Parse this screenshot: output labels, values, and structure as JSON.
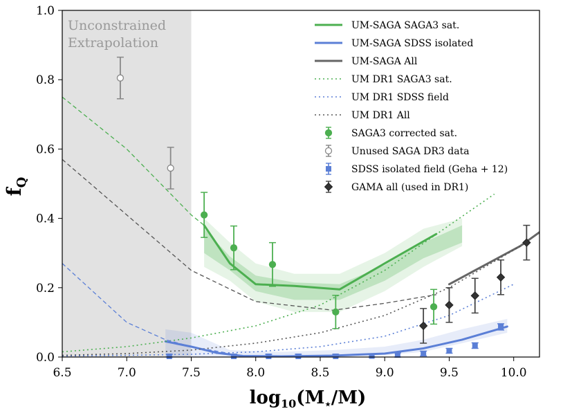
{
  "chart_data": {
    "type": "line",
    "xlabel": "log10(M⋆/M)",
    "xlabel_parts": {
      "prefix": "log",
      "sub": "10",
      "main": "(M",
      "star": "⋆",
      "suffix": "/M)"
    },
    "ylabel": "fQ",
    "ylabel_parts": {
      "main": "f",
      "sub": "Q"
    },
    "xlim": [
      6.5,
      10.2
    ],
    "ylim": [
      0.0,
      1.0
    ],
    "x_ticks": [
      "6.5",
      "7.0",
      "7.5",
      "8.0",
      "8.5",
      "9.0",
      "9.5",
      "10.0"
    ],
    "y_ticks": [
      "0.0",
      "0.2",
      "0.4",
      "0.6",
      "0.8",
      "1.0"
    ],
    "grid": false,
    "legend_position": "top-right",
    "shaded_region": {
      "x_range": [
        6.5,
        7.5
      ],
      "label_lines": [
        "Unconstrained",
        "Extrapolation"
      ],
      "color": "#e2e2e2"
    },
    "bands": [
      {
        "name": "UM-SAGA SAGA3 sat. outer band",
        "color": "#4caf50",
        "opacity": 0.14,
        "x": [
          7.6,
          7.8,
          8.0,
          8.3,
          8.65,
          9.0,
          9.3,
          9.6
        ],
        "upper": [
          0.4,
          0.33,
          0.27,
          0.24,
          0.24,
          0.3,
          0.37,
          0.4
        ],
        "lower": [
          0.26,
          0.22,
          0.16,
          0.13,
          0.13,
          0.19,
          0.26,
          0.32
        ]
      },
      {
        "name": "UM-SAGA SAGA3 sat. inner band",
        "color": "#4caf50",
        "opacity": 0.25,
        "x": [
          7.6,
          7.8,
          8.0,
          8.3,
          8.65,
          9.0,
          9.3,
          9.6
        ],
        "upper": [
          0.37,
          0.29,
          0.235,
          0.215,
          0.21,
          0.265,
          0.33,
          0.38
        ],
        "lower": [
          0.3,
          0.25,
          0.19,
          0.165,
          0.165,
          0.22,
          0.285,
          0.33
        ]
      },
      {
        "name": "UM-SAGA SDSS isolated band",
        "color": "#5b7fd6",
        "opacity": 0.15,
        "x": [
          7.3,
          7.5,
          7.8,
          8.2,
          8.6,
          9.0,
          9.3,
          9.6,
          9.95
        ],
        "upper": [
          0.08,
          0.07,
          0.02,
          0.015,
          0.02,
          0.03,
          0.05,
          0.08,
          0.11
        ],
        "lower": [
          0.0,
          0.0,
          0.0,
          0.0,
          0.0,
          0.005,
          0.015,
          0.04,
          0.07
        ]
      }
    ],
    "series": [
      {
        "name": "UM-SAGA SAGA3 sat.",
        "color": "#4caf50",
        "style": "solid",
        "width": 3,
        "x": [
          7.6,
          7.8,
          8.0,
          8.3,
          8.65,
          9.0,
          9.4
        ],
        "y": [
          0.38,
          0.27,
          0.21,
          0.205,
          0.195,
          0.27,
          0.355
        ]
      },
      {
        "name": "UM-SAGA SDSS isolated",
        "color": "#5b7fd6",
        "style": "solid",
        "width": 3,
        "x": [
          7.3,
          7.5,
          7.7,
          7.9,
          8.2,
          8.6,
          9.0,
          9.3,
          9.6,
          9.95
        ],
        "y": [
          0.045,
          0.03,
          0.012,
          0.003,
          0.002,
          0.004,
          0.01,
          0.025,
          0.05,
          0.088
        ]
      },
      {
        "name": "UM-SAGA All",
        "color": "#666666",
        "style": "solid",
        "width": 3,
        "x": [
          9.5,
          9.7,
          9.9,
          10.05,
          10.2
        ],
        "y": [
          0.21,
          0.25,
          0.29,
          0.32,
          0.36
        ]
      },
      {
        "name": "UM DR1 SAGA3 sat.",
        "color": "#4caf50",
        "style": "dotted",
        "width": 1.6,
        "x": [
          6.5,
          7.0,
          7.5,
          8.0,
          8.5,
          9.0,
          9.5,
          9.85
        ],
        "y": [
          0.015,
          0.03,
          0.055,
          0.09,
          0.15,
          0.25,
          0.38,
          0.47
        ]
      },
      {
        "name": "UM DR1 SDSS field",
        "color": "#5b7fd6",
        "style": "dotted",
        "width": 1.6,
        "x": [
          6.5,
          7.0,
          7.5,
          8.0,
          8.5,
          9.0,
          9.5,
          10.0
        ],
        "y": [
          0.003,
          0.005,
          0.008,
          0.015,
          0.03,
          0.06,
          0.12,
          0.21
        ]
      },
      {
        "name": "UM DR1 All",
        "color": "#555555",
        "style": "dotted",
        "width": 1.6,
        "x": [
          6.5,
          7.0,
          7.5,
          8.0,
          8.5,
          9.0,
          9.5,
          10.1
        ],
        "y": [
          0.005,
          0.01,
          0.02,
          0.04,
          0.07,
          0.12,
          0.2,
          0.33
        ]
      },
      {
        "name": "UM DR1 SAGA3 sat. (extrapolated)",
        "color": "#4caf50",
        "style": "dashed",
        "width": 1.3,
        "x": [
          6.5,
          7.0,
          7.5,
          7.6
        ],
        "y": [
          0.75,
          0.6,
          0.41,
          0.38
        ]
      },
      {
        "name": "UM DR1 All (extrapolated)",
        "color": "#555555",
        "style": "dashed",
        "width": 1.3,
        "x": [
          6.5,
          7.0,
          7.5,
          8.0,
          8.6,
          9.0,
          9.4
        ],
        "y": [
          0.57,
          0.41,
          0.25,
          0.16,
          0.135,
          0.155,
          0.18
        ]
      },
      {
        "name": "UM DR1 SDSS field (extrapolated)",
        "color": "#5b7fd6",
        "style": "dashed",
        "width": 1.3,
        "x": [
          6.5,
          7.0,
          7.3,
          7.5,
          7.8
        ],
        "y": [
          0.27,
          0.1,
          0.05,
          0.03,
          0.01
        ]
      }
    ],
    "points": [
      {
        "name": "SAGA3 corrected sat.",
        "marker": "circle",
        "color": "#4caf50",
        "edge": "#4caf50",
        "x": [
          7.6,
          7.83,
          8.13,
          8.62,
          9.38
        ],
        "y": [
          0.41,
          0.315,
          0.267,
          0.13,
          0.145
        ],
        "err": [
          0.065,
          0.063,
          0.063,
          0.048,
          0.05
        ]
      },
      {
        "name": "Unused SAGA DR3 data",
        "marker": "circle-open",
        "color": "#ffffff",
        "edge": "#888888",
        "x": [
          6.95,
          7.34
        ],
        "y": [
          0.805,
          0.545
        ],
        "err": [
          0.06,
          0.06
        ]
      },
      {
        "name": "SDSS isolated field (Geha + 12)",
        "marker": "square",
        "color": "#5b7fd6",
        "edge": "#5b7fd6",
        "x": [
          7.33,
          7.83,
          8.1,
          8.33,
          8.62,
          8.9,
          9.1,
          9.3,
          9.5,
          9.7,
          9.9
        ],
        "y": [
          0.002,
          0.002,
          0.002,
          0.002,
          0.002,
          0.003,
          0.006,
          0.01,
          0.018,
          0.033,
          0.087
        ],
        "err": [
          0.006,
          0.006,
          0.006,
          0.006,
          0.006,
          0.006,
          0.006,
          0.007,
          0.007,
          0.008,
          0.009
        ]
      },
      {
        "name": "GAMA all (used in DR1)",
        "marker": "diamond",
        "color": "#333333",
        "edge": "#222222",
        "x": [
          9.3,
          9.5,
          9.7,
          9.9,
          10.1
        ],
        "y": [
          0.09,
          0.15,
          0.177,
          0.23,
          0.33
        ],
        "err": [
          0.05,
          0.05,
          0.05,
          0.05,
          0.05
        ]
      }
    ],
    "legend": [
      {
        "label": "UM-SAGA SAGA3 sat.",
        "kind": "line",
        "color": "#4caf50",
        "style": "solid"
      },
      {
        "label": "UM-SAGA SDSS isolated",
        "kind": "line",
        "color": "#5b7fd6",
        "style": "solid"
      },
      {
        "label": "UM-SAGA All",
        "kind": "line",
        "color": "#666666",
        "style": "solid"
      },
      {
        "label": "UM DR1 SAGA3 sat.",
        "kind": "line",
        "color": "#4caf50",
        "style": "dotted"
      },
      {
        "label": "UM DR1 SDSS field",
        "kind": "line",
        "color": "#5b7fd6",
        "style": "dotted"
      },
      {
        "label": "UM DR1 All",
        "kind": "line",
        "color": "#555555",
        "style": "dotted"
      },
      {
        "label": "SAGA3 corrected sat.",
        "kind": "point",
        "marker": "circle",
        "color": "#4caf50",
        "edge": "#4caf50"
      },
      {
        "label": "Unused SAGA DR3 data",
        "kind": "point",
        "marker": "circle-open",
        "color": "#ffffff",
        "edge": "#888888"
      },
      {
        "label": "SDSS isolated field (Geha + 12)",
        "kind": "point",
        "marker": "square",
        "color": "#5b7fd6",
        "edge": "#5b7fd6"
      },
      {
        "label": "GAMA all (used in DR1)",
        "kind": "point",
        "marker": "diamond",
        "color": "#333333",
        "edge": "#222222"
      }
    ]
  }
}
